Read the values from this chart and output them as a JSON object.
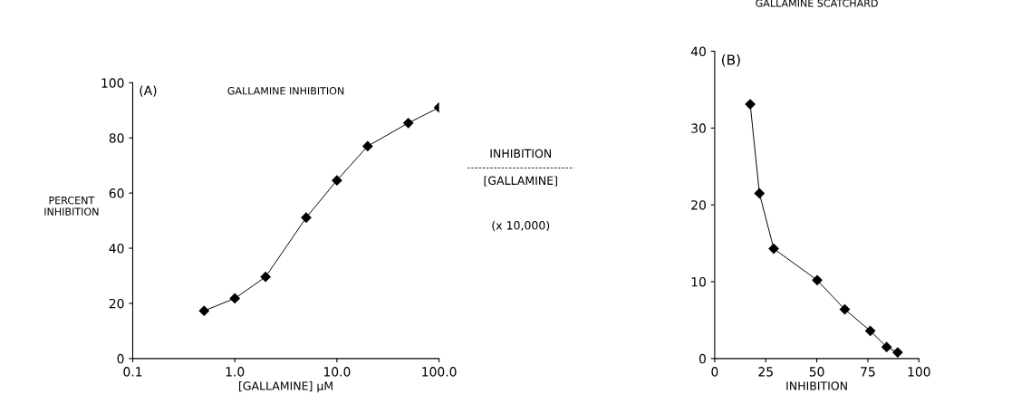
{
  "chart_data": [
    {
      "type": "line",
      "title": "GALLAMINE INHIBITION",
      "xlabel": "[GALLAMINE] µM",
      "ylabel": "PERCENT\nINHIBITION",
      "annotations": [
        "(A)"
      ],
      "log": "x",
      "x": [
        0.5,
        1,
        2,
        5,
        10,
        20,
        50,
        100
      ],
      "series": [
        {
          "color": "#000000",
          "values": [
            17.3,
            21.8,
            29.6,
            51.1,
            64.6,
            77,
            85.4,
            91
          ]
        }
      ],
      "xlim": [
        0.1,
        100
      ],
      "ylim": [
        0,
        100
      ],
      "xticks": [
        0.1,
        {
          "value": 1,
          "label": "1.0"
        },
        {
          "value": 10,
          "label": "10.0"
        },
        {
          "value": 100,
          "label": "100.0"
        }
      ],
      "yticks": [
        0,
        20,
        40,
        60,
        80,
        100
      ],
      "grid": false,
      "marker": "diamond",
      "line_style": "solid"
    },
    {
      "type": "line",
      "title": "GALLAMINE SCATCHARD",
      "xlabel": "INHIBITION",
      "ylabel": "INHIBITION\n\n[GALLAMINE]",
      "annotations": [
        "(B)",
        "(x 10,000)"
      ],
      "x": [
        17.4,
        21.9,
        28.9,
        50.2,
        63.7,
        76.2,
        84.2,
        89.6
      ],
      "series": [
        {
          "color": "#000000",
          "values": [
            33.1,
            21.5,
            14.3,
            10.2,
            6.4,
            3.6,
            1.5,
            0.8
          ]
        }
      ],
      "xlim": [
        0,
        100
      ],
      "ylim": [
        0,
        40
      ],
      "xticks": [
        0,
        25,
        50,
        75,
        100
      ],
      "yticks": [
        0,
        10,
        20,
        30,
        40
      ],
      "grid": false,
      "marker": "diamond",
      "line_style": "solid"
    }
  ]
}
